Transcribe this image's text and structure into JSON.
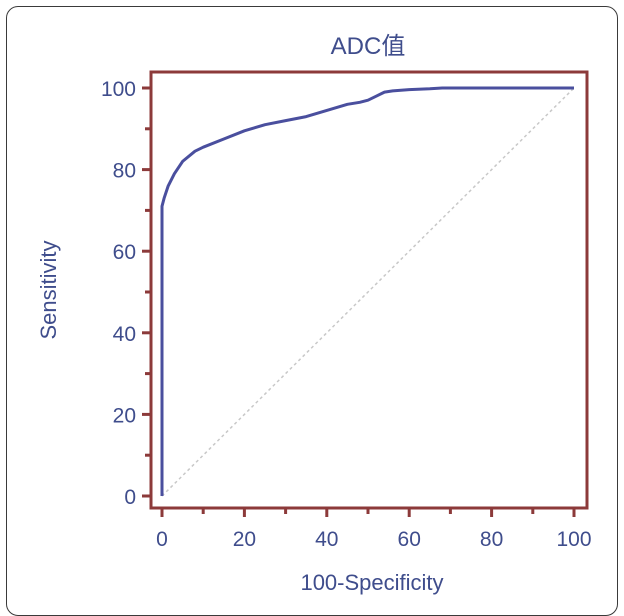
{
  "chart_data": {
    "type": "line",
    "title": "ADC值",
    "xlabel": "100-Specificity",
    "ylabel": "Sensitivity",
    "xlim": [
      0,
      100
    ],
    "ylim": [
      0,
      100
    ],
    "x_ticks": [
      "0",
      "20",
      "40",
      "60",
      "80",
      "100"
    ],
    "y_ticks": [
      "0",
      "20",
      "40",
      "60",
      "80",
      "100"
    ],
    "grid": false,
    "legend": "none",
    "series": [
      {
        "x": [
          0,
          0,
          0.5,
          1.5,
          3,
          5,
          8,
          10,
          15,
          20,
          25,
          30,
          35,
          40,
          45,
          48,
          50,
          52,
          54,
          56,
          60,
          65,
          68,
          100
        ],
        "y": [
          0,
          71,
          73,
          76,
          79,
          82,
          84.5,
          85.5,
          87.5,
          89.5,
          91,
          92,
          93,
          94.5,
          96,
          96.5,
          97,
          98,
          99,
          99.3,
          99.6,
          99.8,
          100,
          100
        ]
      }
    ],
    "reference_line": {
      "x": [
        0,
        100
      ],
      "y": [
        0,
        100
      ]
    },
    "colors": {
      "curve": "#4a4f9e",
      "frame": "#8c3a3a",
      "text": "#3f4d8c",
      "reference": "#c8c8c8"
    }
  }
}
